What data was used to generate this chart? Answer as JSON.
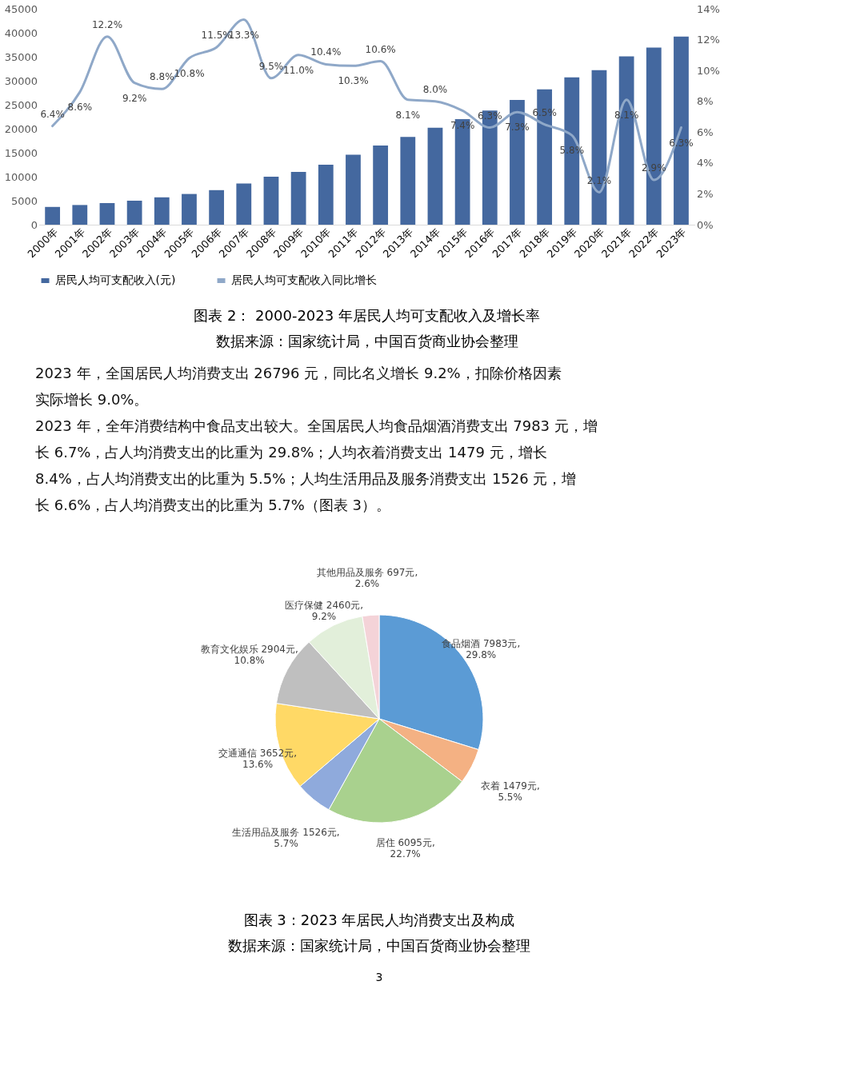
{
  "chart_data": [
    {
      "type": "bar",
      "title": "图表 2： 2000-2023 年居民人均可支配收入及增长率",
      "subtitle": "数据来源：国家统计局，中国百货商业协会整理",
      "categories": [
        "2000年",
        "2001年",
        "2002年",
        "2003年",
        "2004年",
        "2005年",
        "2006年",
        "2007年",
        "2008年",
        "2009年",
        "2010年",
        "2011年",
        "2012年",
        "2013年",
        "2014年",
        "2015年",
        "2016年",
        "2017年",
        "2018年",
        "2019年",
        "2020年",
        "2021年",
        "2022年",
        "2023年"
      ],
      "series": [
        {
          "name": "居民人均可支配收入(元)",
          "color": "#44689f",
          "values": [
            3700,
            4100,
            4500,
            5000,
            5700,
            6400,
            7200,
            8600,
            10000,
            11000,
            12500,
            14600,
            16500,
            18300,
            20200,
            22000,
            23800,
            26000,
            28200,
            30700,
            32200,
            35100,
            36900,
            39200
          ]
        },
        {
          "name": "居民人均可支配收入同比增长",
          "type": "line",
          "axis": "y2",
          "color": "#8fa8c8",
          "values": [
            6.4,
            8.6,
            12.2,
            9.2,
            8.8,
            10.8,
            11.5,
            13.3,
            9.5,
            11.0,
            10.4,
            10.3,
            10.6,
            8.1,
            8.0,
            7.4,
            6.3,
            7.3,
            6.5,
            5.8,
            2.1,
            8.1,
            2.9,
            6.3
          ],
          "value_labels": [
            "6.4%",
            "8.6%",
            "12.2%",
            "9.2%",
            "8.8%",
            "10.8%",
            "11.5%",
            "13.3%",
            "9.5%",
            "11.0%",
            "10.4%",
            "10.3%",
            "10.6%",
            "8.1%",
            "8.0%",
            "7.4%",
            "6.3%",
            "7.3%",
            "6.5%",
            "5.8%",
            "2.1%",
            "8.1%",
            "2.9%",
            "6.3%"
          ]
        }
      ],
      "ylim": [
        0,
        45000
      ],
      "yticks": [
        0,
        5000,
        10000,
        15000,
        20000,
        25000,
        30000,
        35000,
        40000,
        45000
      ],
      "y2lim": [
        0,
        14
      ],
      "y2ticks": [
        {
          "value": 0,
          "label": "0%"
        },
        {
          "value": 2,
          "label": "2%"
        },
        {
          "value": 4,
          "label": "4%"
        },
        {
          "value": 6,
          "label": "6%"
        },
        {
          "value": 8,
          "label": "8%"
        },
        {
          "value": 10,
          "label": "10%"
        },
        {
          "value": 12,
          "label": "12%"
        },
        {
          "value": 14,
          "label": "14%"
        }
      ],
      "legend": "bottom",
      "annotations": [
        "2023 年，全国居民人均消费支出 26796 元，同比名义增长 9.2%，扣除价格因素实际增长 9.0%。",
        "2023 年，全年消费结构中食品支出较大。全国居民人均食品烟酒消费支出 7983 元，增长 6.7%，占人均消费支出的比重为 29.8%；人均衣着消费支出 1479 元，增长 8.4%，占人均消费支出的比重为 5.5%；人均生活用品及服务消费支出 1526 元，增长 6.6%，占人均消费支出的比重为 5.7%（图表 3）。"
      ]
    },
    {
      "type": "pie",
      "title": "图表 3：2023 年居民人均消费支出及构成",
      "subtitle": "数据来源：国家统计局，中国百货商业协会整理",
      "categories": [
        "食品烟酒",
        "衣着",
        "居住",
        "生活用品及服务",
        "交通通信",
        "教育文化娱乐",
        "医疗保健",
        "其他用品及服务"
      ],
      "values": [
        7983,
        1479,
        6095,
        1526,
        3652,
        2904,
        2460,
        697
      ],
      "colors": [
        "#5b9bd5",
        "#f4b183",
        "#a9d18e",
        "#8faadc",
        "#ffd966",
        "#bfbfbf",
        "#e2efda",
        "#f4d3d8"
      ],
      "value_labels": [
        "7983元, 29.8%",
        "1479元, 5.5%",
        "6095元, 22.7%",
        "1526元, 5.7%",
        "3652元, 13.6%",
        "2904元, 10.8%",
        "2460元, 9.2%",
        "697元, 2.6%"
      ],
      "annotations": [
        "3"
      ]
    }
  ]
}
